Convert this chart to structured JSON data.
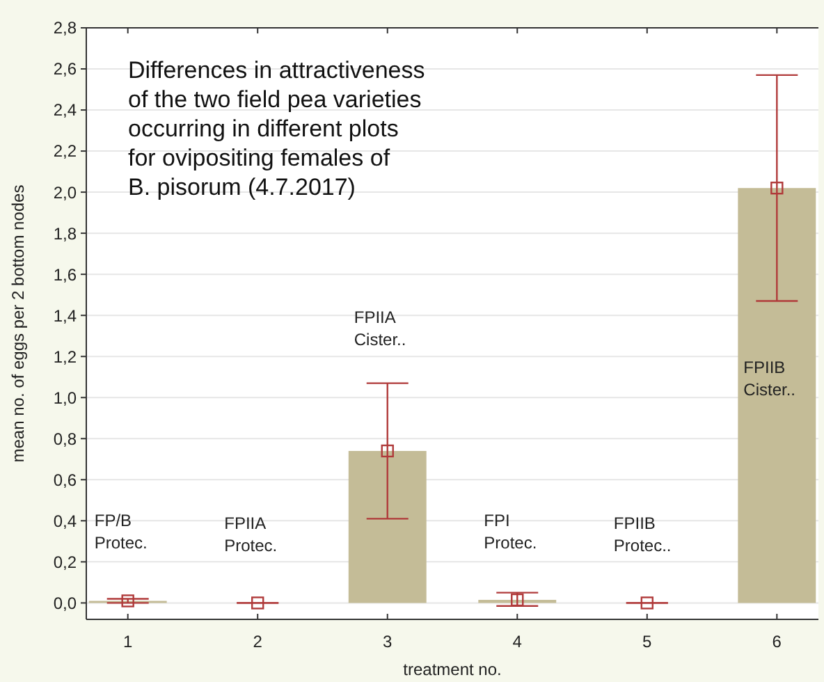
{
  "chart_data": {
    "type": "bar",
    "title": "Differences in attractiveness\nof the two field pea varieties\noccurring in different plots\nfor ovipositing females of\nB. pisorum (4.7.2017)",
    "xlabel": "treatment no.",
    "ylabel": "mean no. of eggs per 2 bottom nodes",
    "categories": [
      "1",
      "2",
      "3",
      "4",
      "5",
      "6"
    ],
    "series": [
      {
        "color": "#c4bc97",
        "values": [
          0.01,
          0.0,
          0.74,
          0.015,
          0.0,
          2.02
        ]
      },
      {
        "type": "scatter",
        "color": "#b03a3a",
        "marker": "square",
        "x": [
          "1",
          "2",
          "3",
          "4",
          "5",
          "6"
        ],
        "values": [
          0.01,
          0.0,
          0.74,
          0.015,
          0.0,
          2.02
        ],
        "errors": [
          0.01,
          0.0,
          0.33,
          [
            0.03,
            0.035
          ],
          0.0,
          0.55
        ]
      }
    ],
    "ylim": [
      -0.08,
      2.8
    ],
    "yticks": [
      {
        "value": 0,
        "label": "0,0"
      },
      {
        "value": 0.2,
        "label": "0,2"
      },
      {
        "value": 0.4,
        "label": "0,4"
      },
      {
        "value": 0.6,
        "label": "0,6"
      },
      {
        "value": 0.8,
        "label": "0,8"
      },
      {
        "value": 1.0,
        "label": "1,0"
      },
      {
        "value": 1.2,
        "label": "1,2"
      },
      {
        "value": 1.4,
        "label": "1,4"
      },
      {
        "value": 1.6,
        "label": "1,6"
      },
      {
        "value": 1.8,
        "label": "1,8"
      },
      {
        "value": 2.0,
        "label": "2,0"
      },
      {
        "value": 2.2,
        "label": "2,2"
      },
      {
        "value": 2.4,
        "label": "2,4"
      },
      {
        "value": 2.6,
        "label": "2,6"
      },
      {
        "value": 2.8,
        "label": "2,8"
      }
    ],
    "grid": "y",
    "annotations": [
      "FP/B\nProtec.",
      "FPIIA\nProtec.",
      "FPIIA\nCister..",
      "FPI\nProtec.",
      "FPIIB\nProtec..",
      "FPIIB\nCister.."
    ]
  }
}
